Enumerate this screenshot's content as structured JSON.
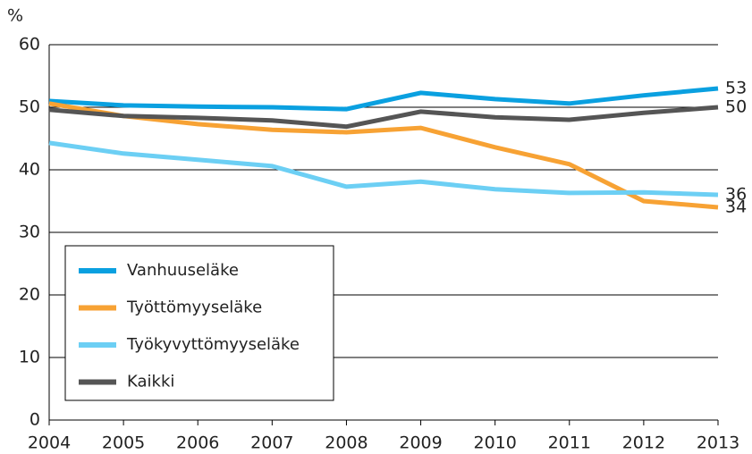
{
  "chart_data": {
    "type": "line",
    "y_label": "%",
    "x": [
      2004,
      2005,
      2006,
      2007,
      2008,
      2009,
      2010,
      2011,
      2012,
      2013
    ],
    "xlim": [
      2004,
      2013
    ],
    "xticks": [
      2004,
      2005,
      2006,
      2007,
      2008,
      2009,
      2010,
      2011,
      2012,
      2013
    ],
    "ylim": [
      0,
      60
    ],
    "yticks": [
      0,
      10,
      20,
      30,
      40,
      50,
      60
    ],
    "grid": true,
    "legend": "lower left",
    "series": [
      {
        "name": "Vanhuuseläke",
        "color": "#0aa0e0",
        "values": [
          51.0,
          50.3,
          50.1,
          50.0,
          49.7,
          52.3,
          51.3,
          50.6,
          51.9,
          53
        ]
      },
      {
        "name": "Työttömyyseläke",
        "color": "#f7a234",
        "values": [
          50.6,
          48.6,
          47.3,
          46.4,
          46.0,
          46.7,
          43.6,
          40.9,
          35.0,
          34
        ]
      },
      {
        "name": "Työkyvyttömyyseläke",
        "color": "#6ccff4",
        "values": [
          44.3,
          42.6,
          41.6,
          40.6,
          37.3,
          38.1,
          36.9,
          36.3,
          36.4,
          36
        ]
      },
      {
        "name": "Kaikki",
        "color": "#555555",
        "values": [
          49.6,
          48.6,
          48.3,
          47.9,
          46.9,
          49.3,
          48.4,
          48.0,
          49.1,
          50
        ]
      }
    ]
  }
}
